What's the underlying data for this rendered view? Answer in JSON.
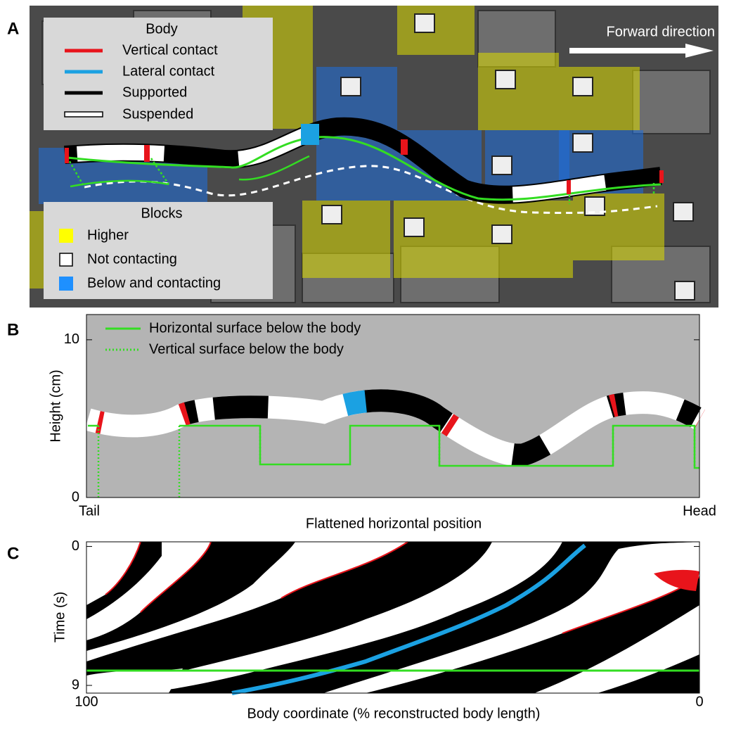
{
  "panel_a": {
    "label": "A",
    "direction": "Forward direction",
    "body_legend": {
      "title": "Body",
      "items": [
        "Vertical contact",
        "Lateral contact",
        "Supported",
        "Suspended"
      ]
    },
    "blocks_legend": {
      "title": "Blocks",
      "items": [
        "Higher",
        "Not contacting",
        "Below and contacting"
      ]
    }
  },
  "panel_b": {
    "label": "B",
    "legend": [
      "Horizontal surface below the body",
      "Vertical surface below the body"
    ],
    "ylabel": "Height (cm)",
    "xlabel": "Flattened horizontal position",
    "x_start": "Tail",
    "x_end": "Head",
    "ylim": [
      0,
      11.6
    ],
    "yticks": [
      0,
      10
    ]
  },
  "panel_c": {
    "label": "C",
    "ylabel": "Time (s)",
    "xlabel": "Body coordinate (% reconstructed body length)",
    "xlim": [
      100,
      0
    ],
    "xticks": [
      100,
      0
    ],
    "ylim": [
      -0.3,
      9.5
    ],
    "yticks": [
      0,
      9
    ]
  }
}
